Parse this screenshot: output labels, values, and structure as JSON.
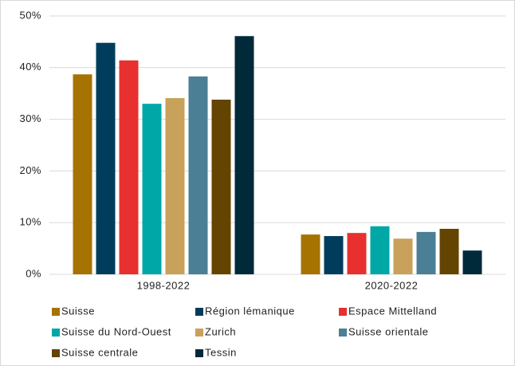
{
  "chart_data": {
    "type": "bar",
    "categories": [
      "1998-2022",
      "2020-2022"
    ],
    "series": [
      {
        "name": "Suisse",
        "color": "#a67300",
        "values": [
          38.7,
          7.7
        ]
      },
      {
        "name": "Région lémanique",
        "color": "#003d5c",
        "values": [
          44.8,
          7.4
        ]
      },
      {
        "name": "Espace Mittelland",
        "color": "#e8302f",
        "values": [
          41.4,
          8.0
        ]
      },
      {
        "name": "Suisse du Nord-Ouest",
        "color": "#00a7a7",
        "values": [
          33.0,
          9.3
        ]
      },
      {
        "name": "Zurich",
        "color": "#c8a15a",
        "values": [
          34.1,
          6.9
        ]
      },
      {
        "name": "Suisse orientale",
        "color": "#4a7f96",
        "values": [
          38.3,
          8.2
        ]
      },
      {
        "name": "Suisse centrale",
        "color": "#634400",
        "values": [
          33.8,
          8.8
        ]
      },
      {
        "name": "Tessin",
        "color": "#002a3a",
        "values": [
          46.1,
          4.6
        ]
      }
    ],
    "ylim": [
      0,
      50
    ],
    "yticks": [
      {
        "value": 0,
        "label": "0%"
      },
      {
        "value": 10,
        "label": "10%"
      },
      {
        "value": 20,
        "label": "20%"
      },
      {
        "value": 30,
        "label": "30%"
      },
      {
        "value": 40,
        "label": "40%"
      },
      {
        "value": 50,
        "label": "50%"
      }
    ],
    "grid": true,
    "legend": "bottom"
  }
}
